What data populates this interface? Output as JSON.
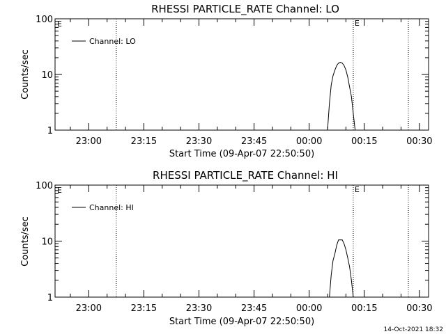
{
  "footer_timestamp": "14-Oct-2021 18:32",
  "chart_data": [
    {
      "type": "line",
      "title": "RHESSI PARTICLE_RATE Channel: LO",
      "xlabel": "Start Time (09-Apr-07 22:50:50)",
      "ylabel": "Counts/sec",
      "yscale": "log",
      "ylim": [
        1,
        100
      ],
      "xlim": [
        "22:50:50",
        "00:32:30"
      ],
      "x_tick_labels": [
        "23:00",
        "23:15",
        "23:30",
        "23:45",
        "00:00",
        "00:15",
        "00:30"
      ],
      "y_tick_labels": [
        "1",
        "10",
        "100"
      ],
      "y_ticks": [
        1,
        10,
        100
      ],
      "legend": {
        "label": "Channel: LO",
        "placement": "top-left"
      },
      "marker_lines": [
        {
          "time": "23:07:30",
          "label": ""
        },
        {
          "time": "00:12:00",
          "label": "E"
        },
        {
          "time": "00:27:00",
          "label": ""
        }
      ],
      "corner_label": "E",
      "series": [
        {
          "name": "Channel: LO",
          "x": [
            "00:05:00",
            "00:05:30",
            "00:06:00",
            "00:06:30",
            "00:07:00",
            "00:07:30",
            "00:08:00",
            "00:08:30",
            "00:09:00",
            "00:09:30",
            "00:10:00",
            "00:10:30",
            "00:11:00",
            "00:11:30",
            "00:12:00",
            "00:12:30",
            "00:13:00"
          ],
          "y": [
            1.0,
            3.0,
            6.5,
            9.5,
            12.0,
            14.5,
            16.0,
            16.5,
            16.0,
            14.5,
            12.0,
            9.0,
            6.0,
            4.0,
            2.0,
            1.0,
            1.0
          ]
        }
      ]
    },
    {
      "type": "line",
      "title": "RHESSI PARTICLE_RATE Channel: HI",
      "xlabel": "Start Time (09-Apr-07 22:50:50)",
      "ylabel": "Counts/sec",
      "yscale": "log",
      "ylim": [
        1,
        100
      ],
      "xlim": [
        "22:50:50",
        "00:32:30"
      ],
      "x_tick_labels": [
        "23:00",
        "23:15",
        "23:30",
        "23:45",
        "00:00",
        "00:15",
        "00:30"
      ],
      "y_tick_labels": [
        "1",
        "10",
        "100"
      ],
      "y_ticks": [
        1,
        10,
        100
      ],
      "legend": {
        "label": "Channel: HI",
        "placement": "top-left"
      },
      "marker_lines": [
        {
          "time": "23:07:30",
          "label": ""
        },
        {
          "time": "00:12:00",
          "label": "E"
        },
        {
          "time": "00:27:00",
          "label": ""
        }
      ],
      "corner_label": "E",
      "series": [
        {
          "name": "Channel: HI",
          "x": [
            "00:05:30",
            "00:06:00",
            "00:06:30",
            "00:07:00",
            "00:07:30",
            "00:08:00",
            "00:08:30",
            "00:09:00",
            "00:09:30",
            "00:10:00",
            "00:10:30",
            "00:11:00",
            "00:11:30",
            "00:12:00"
          ],
          "y": [
            1.0,
            2.5,
            4.5,
            6.0,
            8.5,
            10.5,
            10.5,
            10.5,
            9.0,
            7.0,
            5.0,
            3.5,
            2.0,
            1.0
          ]
        }
      ]
    }
  ]
}
